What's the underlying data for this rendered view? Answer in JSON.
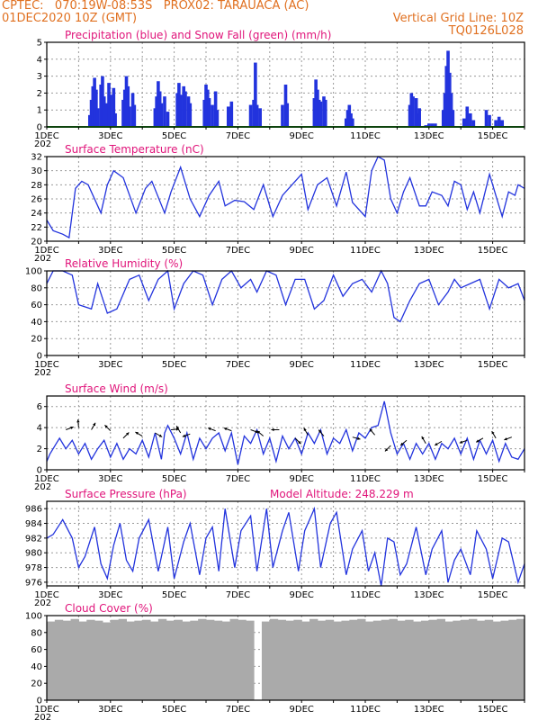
{
  "header": {
    "line1_left": "CPTEC:   070:19W-08:53S   PROX02: TARAUACA (AC)",
    "line2_left": "01DEC2020 10Z (GMT)",
    "line2_right": "Vertical Grid Line: 10Z",
    "line3_right": "TQ0126L028"
  },
  "colors": {
    "header": "#e07020",
    "title": "#e0147a",
    "series": "#2233dd",
    "snow": "#22aa22",
    "cloud": "#aaaaaa"
  },
  "x_axis": {
    "labels": [
      "1DEC",
      "3DEC",
      "5DEC",
      "7DEC",
      "9DEC",
      "11DEC",
      "13DEC",
      "15DEC"
    ],
    "label_days": [
      1,
      3,
      5,
      7,
      9,
      11,
      13,
      15
    ],
    "year_fragment": "202",
    "range_days": [
      1.0,
      16.0
    ]
  },
  "chart_data": [
    {
      "type": "bar",
      "title": "Precipitation (blue) and Snow Fall (green) (mm/h)",
      "ylim": [
        0,
        5
      ],
      "yticks": [
        "0",
        "1",
        "2",
        "3",
        "4",
        "5"
      ],
      "grid": true,
      "series": [
        {
          "name": "Precipitation",
          "color": "#2233dd",
          "points": [
            [
              2.35,
              0.7
            ],
            [
              2.4,
              1.6
            ],
            [
              2.45,
              2.4
            ],
            [
              2.5,
              2.9
            ],
            [
              2.55,
              2.2
            ],
            [
              2.6,
              1.1
            ],
            [
              2.7,
              2.5
            ],
            [
              2.75,
              3.0
            ],
            [
              2.8,
              1.8
            ],
            [
              2.9,
              1.4
            ],
            [
              2.95,
              2.6
            ],
            [
              3.0,
              1.9
            ],
            [
              3.1,
              2.3
            ],
            [
              3.15,
              0.8
            ],
            [
              3.4,
              1.6
            ],
            [
              3.45,
              2.2
            ],
            [
              3.5,
              3.0
            ],
            [
              3.55,
              2.4
            ],
            [
              3.6,
              1.2
            ],
            [
              3.7,
              2.0
            ],
            [
              3.75,
              1.3
            ],
            [
              4.4,
              1.1
            ],
            [
              4.45,
              1.8
            ],
            [
              4.5,
              2.7
            ],
            [
              4.55,
              2.1
            ],
            [
              4.6,
              1.4
            ],
            [
              4.7,
              1.8
            ],
            [
              4.8,
              0.9
            ],
            [
              5.1,
              2.0
            ],
            [
              5.15,
              2.6
            ],
            [
              5.2,
              1.9
            ],
            [
              5.3,
              2.4
            ],
            [
              5.35,
              2.1
            ],
            [
              5.45,
              1.8
            ],
            [
              5.5,
              1.4
            ],
            [
              5.95,
              1.6
            ],
            [
              6.0,
              2.5
            ],
            [
              6.05,
              2.2
            ],
            [
              6.1,
              1.7
            ],
            [
              6.2,
              1.3
            ],
            [
              6.3,
              2.1
            ],
            [
              6.35,
              1.0
            ],
            [
              6.7,
              1.2
            ],
            [
              6.8,
              1.5
            ],
            [
              7.4,
              1.3
            ],
            [
              7.5,
              1.6
            ],
            [
              7.55,
              3.8
            ],
            [
              7.6,
              1.3
            ],
            [
              7.7,
              1.1
            ],
            [
              8.4,
              1.3
            ],
            [
              8.5,
              2.5
            ],
            [
              8.55,
              1.4
            ],
            [
              9.4,
              1.7
            ],
            [
              9.45,
              2.8
            ],
            [
              9.5,
              2.2
            ],
            [
              9.55,
              1.6
            ],
            [
              9.6,
              1.5
            ],
            [
              9.7,
              1.8
            ],
            [
              9.75,
              1.6
            ],
            [
              10.4,
              0.5
            ],
            [
              10.45,
              1.0
            ],
            [
              10.5,
              1.3
            ],
            [
              10.55,
              0.8
            ],
            [
              10.6,
              0.5
            ],
            [
              12.4,
              1.3
            ],
            [
              12.45,
              2.0
            ],
            [
              12.5,
              1.8
            ],
            [
              12.6,
              1.7
            ],
            [
              12.65,
              0.8
            ],
            [
              12.7,
              1.1
            ],
            [
              12.9,
              0.1
            ],
            [
              13.0,
              0.2
            ],
            [
              13.1,
              0.2
            ],
            [
              13.2,
              0.2
            ],
            [
              13.45,
              1.0
            ],
            [
              13.5,
              2.0
            ],
            [
              13.55,
              3.6
            ],
            [
              13.6,
              4.5
            ],
            [
              13.65,
              3.2
            ],
            [
              13.7,
              2.0
            ],
            [
              13.75,
              1.0
            ],
            [
              14.1,
              0.5
            ],
            [
              14.2,
              1.2
            ],
            [
              14.3,
              0.8
            ],
            [
              14.4,
              0.4
            ],
            [
              14.8,
              1.0
            ],
            [
              14.9,
              0.7
            ],
            [
              15.1,
              0.4
            ],
            [
              15.2,
              0.6
            ],
            [
              15.3,
              0.4
            ]
          ]
        },
        {
          "name": "Snow Fall",
          "color": "#22aa22",
          "constant": 0.0
        }
      ]
    },
    {
      "type": "line",
      "title": "Surface Temperature (nC)",
      "ylim": [
        20,
        32
      ],
      "yticks": [
        "20",
        "22",
        "24",
        "26",
        "28",
        "30",
        "32"
      ],
      "grid": true,
      "x": [
        1.0,
        1.2,
        1.5,
        1.7,
        1.9,
        2.1,
        2.3,
        2.7,
        2.9,
        3.1,
        3.4,
        3.8,
        4.1,
        4.3,
        4.7,
        4.9,
        5.2,
        5.5,
        5.8,
        6.1,
        6.4,
        6.6,
        6.9,
        7.2,
        7.5,
        7.8,
        8.1,
        8.4,
        8.7,
        9.0,
        9.2,
        9.5,
        9.8,
        10.1,
        10.4,
        10.6,
        11.0,
        11.2,
        11.4,
        11.6,
        11.8,
        12.0,
        12.2,
        12.4,
        12.7,
        12.9,
        13.1,
        13.4,
        13.6,
        13.8,
        14.0,
        14.2,
        14.4,
        14.6,
        14.9,
        15.1,
        15.3,
        15.5,
        15.7,
        15.8,
        16.0
      ],
      "y": [
        23.0,
        21.5,
        21.0,
        20.5,
        27.5,
        28.5,
        28.0,
        24.0,
        28.0,
        30.0,
        29.0,
        24.0,
        27.5,
        28.5,
        24.0,
        27.0,
        30.5,
        26.0,
        23.5,
        26.5,
        28.5,
        25.0,
        25.8,
        25.6,
        24.5,
        28.0,
        23.5,
        26.5,
        28.0,
        29.5,
        24.5,
        28.0,
        29.0,
        25.0,
        29.8,
        25.5,
        23.5,
        30.0,
        32.0,
        31.5,
        26.0,
        24.0,
        27.0,
        29.0,
        25.0,
        25.0,
        27.0,
        26.5,
        25.0,
        28.5,
        28.0,
        24.5,
        27.0,
        24.0,
        29.5,
        26.5,
        23.5,
        27.0,
        26.5,
        28.0,
        27.5
      ]
    },
    {
      "type": "line",
      "title": "Relative Humidity (%)",
      "ylim": [
        0,
        100
      ],
      "yticks": [
        "0",
        "20",
        "40",
        "60",
        "80",
        "100"
      ],
      "grid": true,
      "x": [
        1.0,
        1.2,
        1.5,
        1.8,
        2.0,
        2.4,
        2.6,
        2.9,
        3.2,
        3.6,
        3.9,
        4.2,
        4.5,
        4.8,
        5.0,
        5.3,
        5.6,
        5.9,
        6.2,
        6.5,
        6.8,
        7.1,
        7.4,
        7.6,
        7.9,
        8.2,
        8.5,
        8.8,
        9.1,
        9.4,
        9.7,
        10.0,
        10.3,
        10.6,
        10.9,
        11.2,
        11.5,
        11.7,
        11.9,
        12.1,
        12.4,
        12.7,
        13.0,
        13.3,
        13.6,
        13.8,
        14.0,
        14.3,
        14.6,
        14.9,
        15.2,
        15.5,
        15.8,
        16.0
      ],
      "y": [
        85,
        100,
        100,
        95,
        60,
        55,
        85,
        50,
        55,
        90,
        95,
        65,
        90,
        100,
        55,
        85,
        100,
        95,
        60,
        90,
        100,
        80,
        90,
        75,
        100,
        95,
        60,
        90,
        90,
        55,
        65,
        95,
        70,
        85,
        90,
        75,
        100,
        85,
        45,
        40,
        65,
        85,
        90,
        60,
        75,
        90,
        80,
        85,
        90,
        55,
        90,
        80,
        85,
        65
      ]
    },
    {
      "type": "line",
      "title": "Surface Wind (m/s)",
      "ylim": [
        0,
        7
      ],
      "yticks": [
        "0",
        "2",
        "4",
        "6"
      ],
      "grid": true,
      "x": [
        1.0,
        1.1,
        1.3,
        1.4,
        1.6,
        1.8,
        2.0,
        2.2,
        2.4,
        2.6,
        2.8,
        3.0,
        3.2,
        3.4,
        3.6,
        3.8,
        4.0,
        4.2,
        4.4,
        4.6,
        4.7,
        4.8,
        5.0,
        5.2,
        5.4,
        5.6,
        5.8,
        6.0,
        6.2,
        6.4,
        6.6,
        6.8,
        7.0,
        7.2,
        7.4,
        7.6,
        7.8,
        8.0,
        8.2,
        8.4,
        8.6,
        8.8,
        9.0,
        9.2,
        9.4,
        9.6,
        9.8,
        10.0,
        10.2,
        10.4,
        10.6,
        10.8,
        11.0,
        11.2,
        11.4,
        11.6,
        11.8,
        12.0,
        12.2,
        12.4,
        12.6,
        12.8,
        13.0,
        13.2,
        13.4,
        13.6,
        13.8,
        14.0,
        14.2,
        14.4,
        14.6,
        14.8,
        15.0,
        15.2,
        15.4,
        15.6,
        15.8,
        16.0
      ],
      "y": [
        0.8,
        1.5,
        2.5,
        3.0,
        2.0,
        2.8,
        1.5,
        2.5,
        1.0,
        2.0,
        2.8,
        1.2,
        2.5,
        1.0,
        2.0,
        1.5,
        2.8,
        1.2,
        3.5,
        1.0,
        3.5,
        4.2,
        3.0,
        1.5,
        3.5,
        1.0,
        3.0,
        2.0,
        3.0,
        3.5,
        1.8,
        3.5,
        0.5,
        3.2,
        2.5,
        3.8,
        1.5,
        3.0,
        0.8,
        3.2,
        2.0,
        3.0,
        1.5,
        3.5,
        2.5,
        3.8,
        1.5,
        3.0,
        2.5,
        3.8,
        1.8,
        3.5,
        3.0,
        4.0,
        4.2,
        6.5,
        3.5,
        1.5,
        2.5,
        1.0,
        2.5,
        1.5,
        2.5,
        1.0,
        2.5,
        2.0,
        3.0,
        1.5,
        3.0,
        1.0,
        2.8,
        1.5,
        2.8,
        0.8,
        2.5,
        1.2,
        1.0,
        2.0
      ],
      "wind_arrows": [
        [
          1.6,
          3.8,
          20
        ],
        [
          2.0,
          4.0,
          95
        ],
        [
          2.4,
          3.8,
          60
        ],
        [
          3.0,
          3.7,
          135
        ],
        [
          3.4,
          3.0,
          45
        ],
        [
          4.0,
          3.2,
          150
        ],
        [
          4.4,
          3.5,
          -30
        ],
        [
          4.9,
          3.8,
          5
        ],
        [
          5.2,
          3.5,
          120
        ],
        [
          5.5,
          3.4,
          200
        ],
        [
          6.3,
          3.7,
          160
        ],
        [
          6.8,
          3.7,
          160
        ],
        [
          7.4,
          3.8,
          -20
        ],
        [
          7.8,
          3.2,
          140
        ],
        [
          8.3,
          3.8,
          180
        ],
        [
          8.8,
          3.0,
          -45
        ],
        [
          9.2,
          3.3,
          120
        ],
        [
          9.7,
          3.2,
          130
        ],
        [
          10.6,
          3.1,
          -15
        ],
        [
          11.3,
          3.3,
          130
        ],
        [
          11.8,
          2.3,
          225
        ],
        [
          12.3,
          2.8,
          220
        ],
        [
          12.9,
          2.5,
          120
        ],
        [
          13.4,
          2.7,
          210
        ],
        [
          14.2,
          2.8,
          200
        ],
        [
          14.7,
          3.0,
          210
        ],
        [
          15.1,
          3.0,
          120
        ],
        [
          15.6,
          3.1,
          200
        ]
      ]
    },
    {
      "type": "line",
      "title": "Surface Pressure (hPa)",
      "annotation": "Model Altitude: 248.229 m",
      "ylim": [
        975.5,
        987
      ],
      "yticks": [
        "976",
        "978",
        "980",
        "982",
        "984",
        "986"
      ],
      "grid": true,
      "x": [
        1.0,
        1.2,
        1.5,
        1.8,
        2.0,
        2.2,
        2.5,
        2.7,
        2.9,
        3.1,
        3.3,
        3.5,
        3.7,
        3.9,
        4.2,
        4.5,
        4.8,
        5.0,
        5.3,
        5.5,
        5.8,
        6.0,
        6.2,
        6.4,
        6.6,
        6.9,
        7.1,
        7.4,
        7.6,
        7.9,
        8.1,
        8.4,
        8.6,
        8.9,
        9.1,
        9.4,
        9.6,
        9.9,
        10.1,
        10.4,
        10.6,
        10.9,
        11.1,
        11.3,
        11.5,
        11.7,
        11.9,
        12.1,
        12.3,
        12.6,
        12.9,
        13.1,
        13.4,
        13.6,
        13.8,
        14.0,
        14.3,
        14.5,
        14.8,
        15.0,
        15.3,
        15.5,
        15.8,
        16.0
      ],
      "y": [
        982.0,
        982.5,
        984.5,
        982.0,
        978.0,
        979.5,
        983.5,
        978.5,
        976.5,
        981.0,
        984.0,
        979.0,
        977.5,
        982.0,
        984.5,
        977.5,
        983.5,
        976.5,
        981.5,
        984.0,
        977.0,
        982.0,
        983.5,
        977.5,
        986.0,
        978.0,
        983.0,
        985.0,
        977.5,
        986.0,
        978.0,
        983.0,
        985.5,
        977.5,
        983.0,
        986.0,
        978.0,
        984.0,
        985.5,
        977.0,
        980.5,
        983.0,
        977.5,
        980.0,
        975.5,
        982.0,
        981.5,
        977.0,
        978.5,
        983.5,
        977.0,
        980.5,
        983.0,
        976.0,
        979.0,
        980.5,
        977.0,
        983.0,
        980.5,
        976.5,
        982.0,
        981.5,
        976.0,
        978.5
      ]
    },
    {
      "type": "bar",
      "title": "Cloud Cover (%)",
      "ylim": [
        0,
        100
      ],
      "yticks": [
        "0",
        "20",
        "40",
        "60",
        "80",
        "100"
      ],
      "grid": true,
      "series": [
        {
          "name": "Cloud Cover",
          "color": "#aaaaaa",
          "values": [
            93,
            95,
            94,
            96,
            93,
            95,
            94,
            92,
            95,
            96,
            93,
            94,
            95,
            93,
            96,
            94,
            95,
            93,
            94,
            96,
            95,
            94,
            93,
            96,
            95,
            94,
            0,
            93,
            96,
            95,
            94,
            95,
            93,
            96,
            94,
            95,
            93,
            94,
            95,
            96,
            93,
            94,
            95,
            96,
            94,
            95,
            93,
            94,
            95,
            96,
            93,
            94,
            95,
            96,
            94,
            95,
            93,
            94,
            95,
            96
          ]
        }
      ]
    }
  ]
}
